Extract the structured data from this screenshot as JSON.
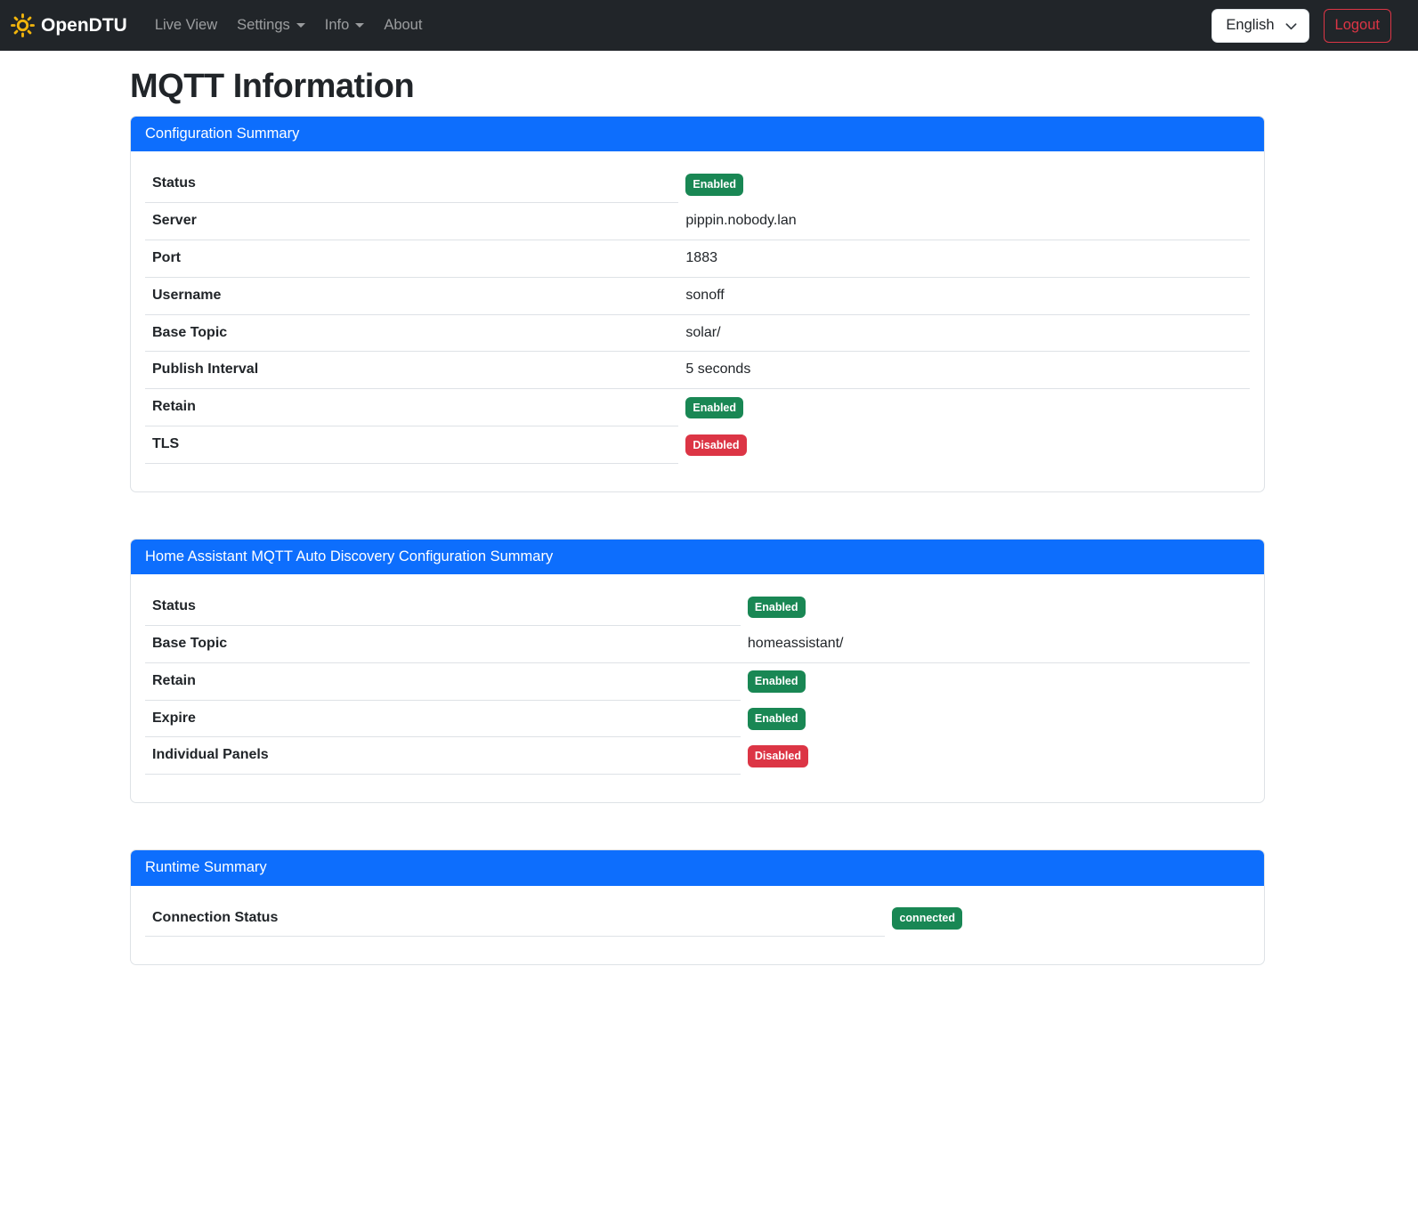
{
  "navbar": {
    "brand": "OpenDTU",
    "items": [
      {
        "label": "Live View",
        "caret": false
      },
      {
        "label": "Settings",
        "caret": true
      },
      {
        "label": "Info",
        "caret": true
      },
      {
        "label": "About",
        "caret": false
      }
    ],
    "language_selector": {
      "value": "English"
    },
    "logout_label": "Logout"
  },
  "page": {
    "title": "MQTT Information"
  },
  "cards": [
    {
      "header": "Configuration Summary",
      "label_col_width": "48.3%",
      "rows": [
        {
          "label": "Status",
          "type": "badge",
          "value": "Enabled",
          "variant": "success"
        },
        {
          "label": "Server",
          "type": "text",
          "value": "pippin.nobody.lan"
        },
        {
          "label": "Port",
          "type": "text",
          "value": "1883"
        },
        {
          "label": "Username",
          "type": "text",
          "value": "sonoff"
        },
        {
          "label": "Base Topic",
          "type": "text",
          "value": "solar/"
        },
        {
          "label": "Publish Interval",
          "type": "text",
          "value": "5 seconds"
        },
        {
          "label": "Retain",
          "type": "badge",
          "value": "Enabled",
          "variant": "success"
        },
        {
          "label": "TLS",
          "type": "badge",
          "value": "Disabled",
          "variant": "danger"
        }
      ]
    },
    {
      "header": "Home Assistant MQTT Auto Discovery Configuration Summary",
      "label_col_width": "53.9%",
      "rows": [
        {
          "label": "Status",
          "type": "badge",
          "value": "Enabled",
          "variant": "success"
        },
        {
          "label": "Base Topic",
          "type": "text",
          "value": "homeassistant/"
        },
        {
          "label": "Retain",
          "type": "badge",
          "value": "Enabled",
          "variant": "success"
        },
        {
          "label": "Expire",
          "type": "badge",
          "value": "Enabled",
          "variant": "success"
        },
        {
          "label": "Individual Panels",
          "type": "badge",
          "value": "Disabled",
          "variant": "danger"
        }
      ]
    },
    {
      "header": "Runtime Summary",
      "label_col_width": "67%",
      "rows": [
        {
          "label": "Connection Status",
          "type": "badge",
          "value": "connected",
          "variant": "success"
        }
      ]
    }
  ],
  "theme": {
    "primary": "#0d6efd",
    "success": "#198754",
    "danger": "#dc3545",
    "navbar_bg": "#212529",
    "brand_icon_color": "#f2b50c",
    "divider": "#dee2e6"
  }
}
